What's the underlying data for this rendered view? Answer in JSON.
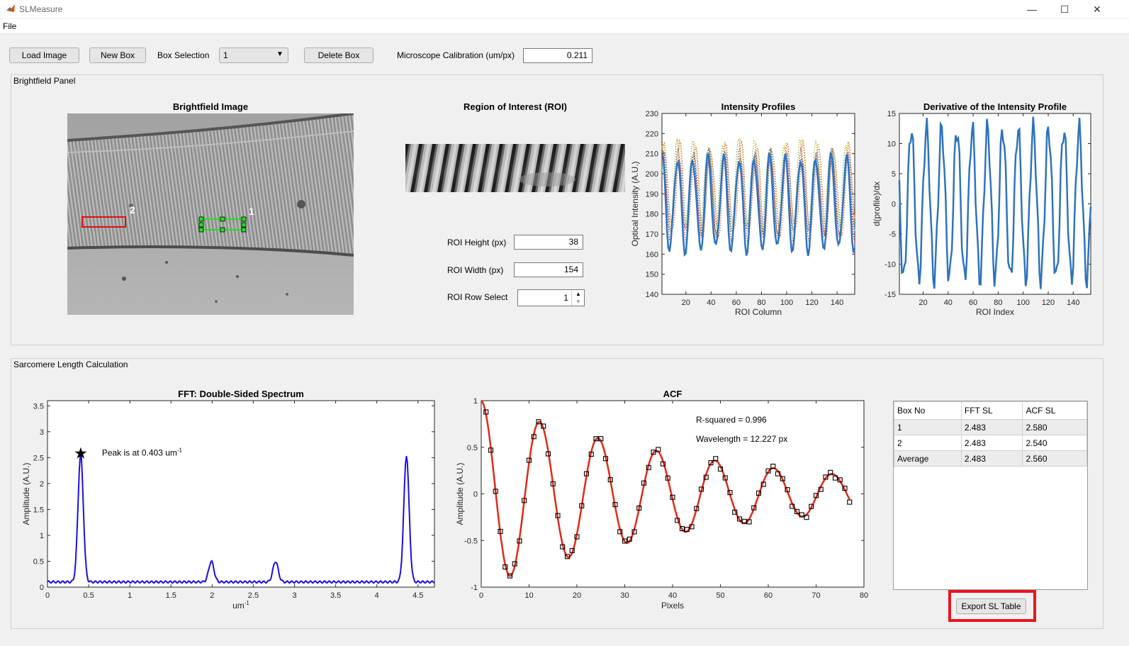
{
  "window": {
    "title": "SLMeasure",
    "minimize_icon": "minimize-icon",
    "maximize_icon": "maximize-icon",
    "close_icon": "close-icon"
  },
  "menu": {
    "file": "File"
  },
  "toolbar": {
    "load_image": "Load Image",
    "new_box": "New Box",
    "box_selection_label": "Box Selection",
    "box_selection_value": "1",
    "delete_box": "Delete Box",
    "calibration_label": "Microscope Calibration (um/px)",
    "calibration_value": "0.211"
  },
  "brightfield_panel": {
    "title": "Brightfield Panel",
    "image_title": "Brightfield Image",
    "box_labels": [
      "2",
      "1"
    ],
    "roi_title": "Region of Interest (ROI)",
    "roi_height_label": "ROI Height (px)",
    "roi_height_value": "38",
    "roi_width_label": "ROI Width (px)",
    "roi_width_value": "154",
    "roi_row_label": "ROI Row Select",
    "roi_row_value": "1"
  },
  "sl_panel": {
    "title": "Sarcomere Length Calculation",
    "table": {
      "headers": [
        "Box No",
        "FFT SL",
        "ACF SL"
      ],
      "rows": [
        [
          "1",
          "2.483",
          "2.580"
        ],
        [
          "2",
          "2.483",
          "2.540"
        ],
        [
          "Average",
          "2.483",
          "2.560"
        ]
      ]
    },
    "export_button": "Export SL Table"
  },
  "colors": {
    "highlight": "#e8151f",
    "roi_green": "#22dd22",
    "box_red": "#e01010",
    "fft_line": "#1a10e0",
    "acf_fit": "#e02a1a",
    "profile_blue": "#2f73bd"
  },
  "chart_data": [
    {
      "type": "line",
      "title": "Intensity Profiles",
      "xlabel": "ROI Column",
      "ylabel": "Optical Intensity (A.U.)",
      "xlim": [
        1,
        154
      ],
      "ylim": [
        140,
        230
      ],
      "xticks": [
        20,
        40,
        60,
        80,
        100,
        120,
        140
      ],
      "yticks": [
        140,
        150,
        160,
        170,
        180,
        190,
        200,
        210,
        220,
        230
      ],
      "period": 12.2,
      "series": [
        {
          "style": "solid",
          "color": "#2f73bd",
          "center": 185,
          "amplitude": 23
        },
        {
          "style": "dotted",
          "color": "#d95319",
          "center": 192,
          "amplitude": 22
        },
        {
          "style": "dotted",
          "color": "#edb120",
          "center": 194,
          "amplitude": 21
        },
        {
          "style": "dotted",
          "color": "#7e2f8e",
          "center": 190,
          "amplitude": 20
        },
        {
          "style": "dotted",
          "color": "#77ac30",
          "center": 193,
          "amplitude": 22
        },
        {
          "style": "dotted",
          "color": "#4dbeee",
          "center": 191,
          "amplitude": 19
        },
        {
          "style": "dotted",
          "color": "#a2142f",
          "center": 189,
          "amplitude": 21
        }
      ]
    },
    {
      "type": "line",
      "title": "Derivative of the Intensity Profile",
      "xlabel": "ROI Index",
      "ylabel": "d(profile)/dx",
      "xlim": [
        1,
        154
      ],
      "ylim": [
        -15,
        15
      ],
      "xticks": [
        20,
        40,
        60,
        80,
        100,
        120,
        140
      ],
      "yticks": [
        -15,
        -10,
        -5,
        0,
        5,
        10,
        15
      ],
      "amplitude": 12.5,
      "period": 12.2
    },
    {
      "type": "line",
      "title": "FFT: Double-Sided Spectrum",
      "xlabel": "um",
      "xlabel_sup": "-1",
      "ylabel": "Amplitude (A.U.)",
      "xlim": [
        0,
        4.7
      ],
      "ylim": [
        0,
        3.6
      ],
      "xticks": [
        0,
        0.5,
        1,
        1.5,
        2,
        2.5,
        3,
        3.5,
        4,
        4.5
      ],
      "yticks": [
        0,
        0.5,
        1,
        1.5,
        2,
        2.5,
        3,
        3.5
      ],
      "peaks": [
        {
          "x": 0.403,
          "y": 2.58
        },
        {
          "x": 1.99,
          "y": 0.5
        },
        {
          "x": 2.77,
          "y": 0.5
        },
        {
          "x": 4.36,
          "y": 2.55
        }
      ],
      "baseline": 0.1,
      "annotation": "Peak is at 0.403 um",
      "annotation_sup": "-1"
    },
    {
      "type": "line",
      "title": "ACF",
      "xlabel": "Pixels",
      "ylabel": "Amplitude (A.U.)",
      "xlim": [
        0,
        80
      ],
      "ylim": [
        -1,
        1
      ],
      "xticks": [
        0,
        10,
        20,
        30,
        40,
        50,
        60,
        70,
        80
      ],
      "yticks": [
        -1,
        -0.5,
        0,
        0.5,
        1
      ],
      "wavelength": 12.227,
      "decay": 0.021,
      "r_squared_text": "R-squared = 0.996",
      "wavelength_text": "Wavelength  = 12.227 px",
      "samples_max": 77
    }
  ]
}
